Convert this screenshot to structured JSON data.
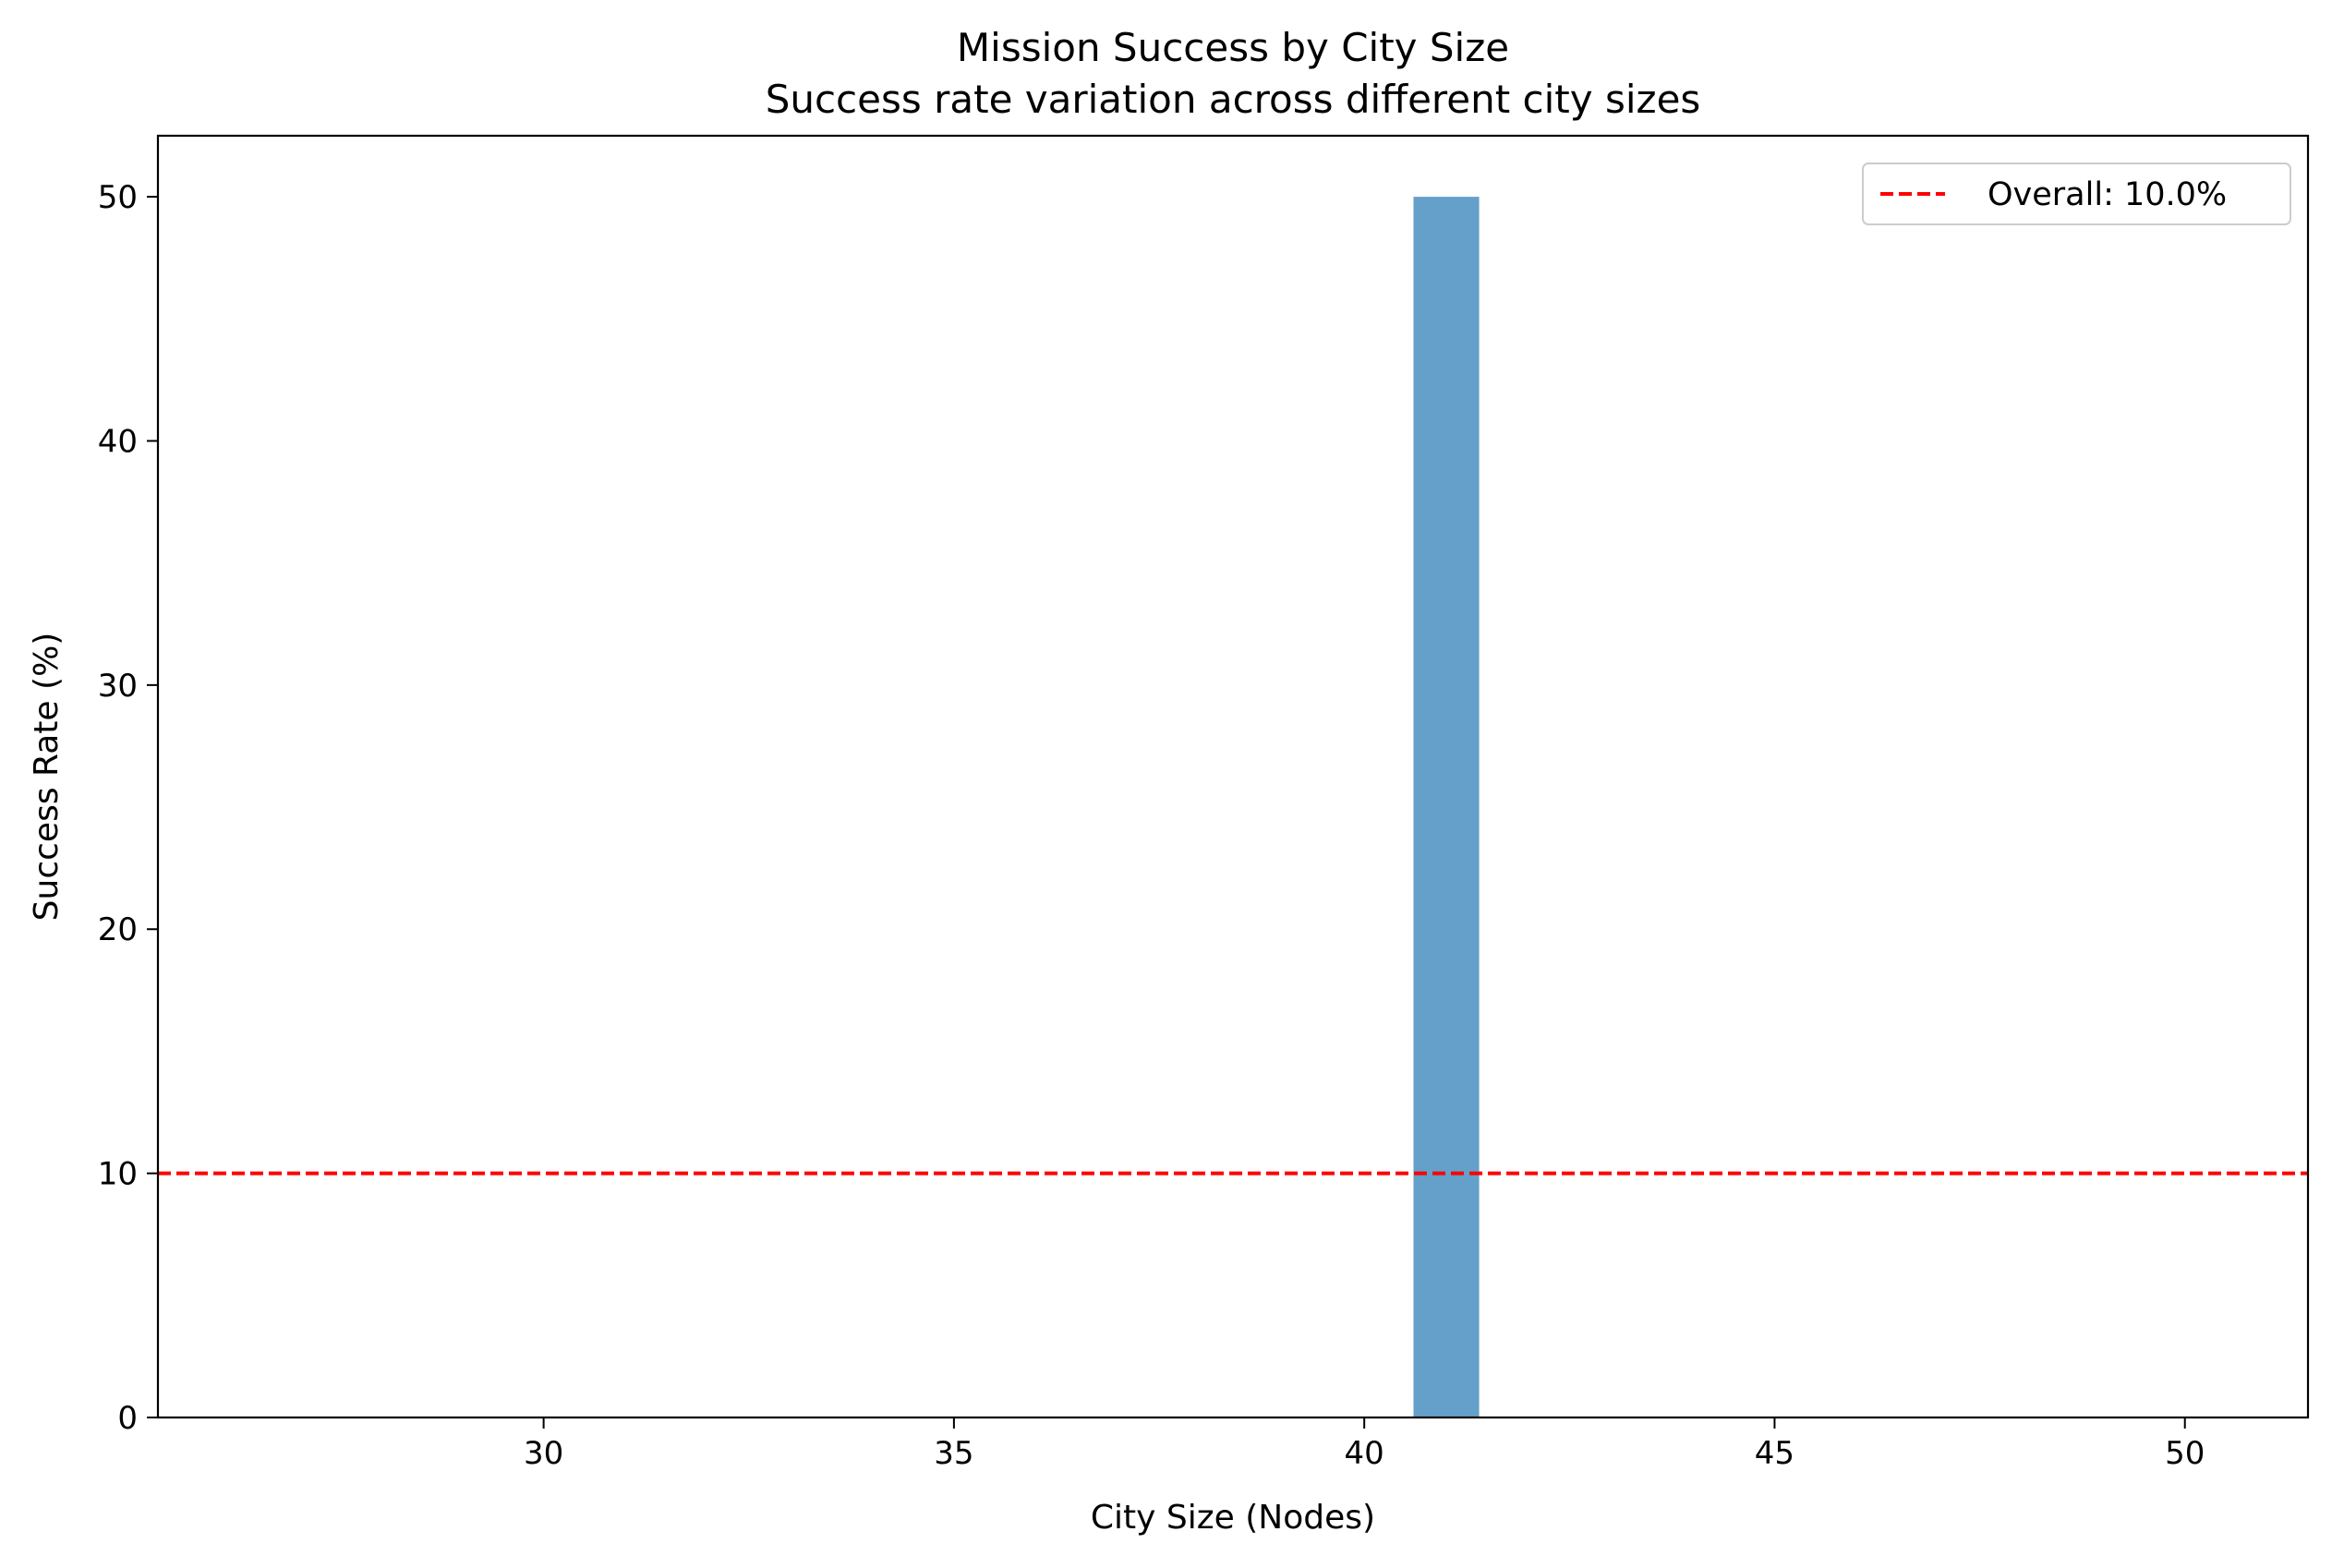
{
  "chart_data": {
    "type": "bar",
    "title": "Mission Success by City Size",
    "subtitle": "Success rate variation across different city sizes",
    "xlabel": "City Size (Nodes)",
    "ylabel": "Success Rate (%)",
    "xlim": [
      25.3,
      51.5
    ],
    "ylim": [
      0,
      52.5
    ],
    "xticks": [
      30,
      35,
      40,
      45,
      50
    ],
    "yticks": [
      0,
      10,
      20,
      30,
      40,
      50
    ],
    "bar_width": 0.8,
    "bars": [
      {
        "x": 41,
        "value": 50
      }
    ],
    "reference_line": {
      "value": 10.0,
      "label": "Overall: 10.0%"
    },
    "legend": {
      "location": "top-right"
    },
    "grid": false,
    "colors": {
      "bar": "#64a0ca",
      "reference_line": "#ff0000",
      "axes": "#000000"
    }
  }
}
